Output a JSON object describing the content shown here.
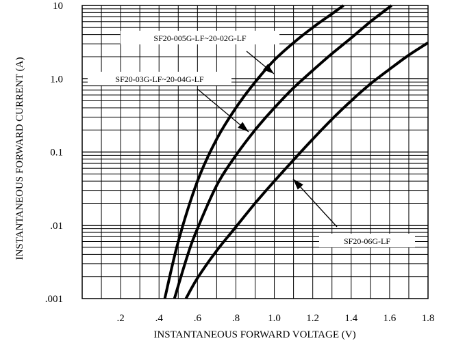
{
  "chart_data": {
    "type": "line",
    "title": "",
    "xlabel": "INSTANTANEOUS FORWARD VOLTAGE (V)",
    "ylabel": "INSTANTANEOUS FORWARD CURRENT (A)",
    "xlim": [
      0,
      1.8
    ],
    "ylim": [
      0.001,
      10
    ],
    "yscale": "log",
    "grid": true,
    "x_ticks": [
      {
        "value": 0.2,
        "label": ".2"
      },
      {
        "value": 0.4,
        "label": ".4"
      },
      {
        "value": 0.6,
        "label": ".6"
      },
      {
        "value": 0.8,
        "label": ".8"
      },
      {
        "value": 1.0,
        "label": "1.0"
      },
      {
        "value": 1.2,
        "label": "1.2"
      },
      {
        "value": 1.4,
        "label": "1.4"
      },
      {
        "value": 1.6,
        "label": "1.6"
      },
      {
        "value": 1.8,
        "label": "1.8"
      }
    ],
    "y_ticks": [
      {
        "value": 10,
        "label": "10"
      },
      {
        "value": 1,
        "label": "1.0"
      },
      {
        "value": 0.1,
        "label": "0.1"
      },
      {
        "value": 0.01,
        "label": ".01"
      },
      {
        "value": 0.001,
        "label": ".001"
      }
    ],
    "series": [
      {
        "name": "SF20-005G-LF~20-02G-LF",
        "x": [
          0.43,
          0.5,
          0.6,
          0.7,
          0.8,
          0.9,
          1.0,
          1.1,
          1.2,
          1.3,
          1.36
        ],
        "y": [
          0.001,
          0.006,
          0.04,
          0.15,
          0.4,
          0.9,
          1.8,
          3.1,
          5.0,
          7.7,
          10
        ]
      },
      {
        "name": "SF20-03G-LF~20-04G-LF",
        "x": [
          0.48,
          0.55,
          0.6,
          0.7,
          0.8,
          0.9,
          1.0,
          1.1,
          1.2,
          1.3,
          1.4,
          1.5,
          1.61
        ],
        "y": [
          0.001,
          0.004,
          0.009,
          0.035,
          0.09,
          0.2,
          0.4,
          0.75,
          1.3,
          2.2,
          3.6,
          6.0,
          10
        ]
      },
      {
        "name": "SF20-06G-LF",
        "x": [
          0.54,
          0.6,
          0.7,
          0.8,
          0.9,
          1.0,
          1.1,
          1.2,
          1.3,
          1.4,
          1.5,
          1.6,
          1.7,
          1.8
        ],
        "y": [
          0.001,
          0.0019,
          0.0045,
          0.0095,
          0.02,
          0.04,
          0.078,
          0.15,
          0.28,
          0.5,
          0.85,
          1.35,
          2.1,
          3.1
        ]
      }
    ],
    "annotations": [
      {
        "text": "SF20-005G-LF~20-02G-LF",
        "series": 0
      },
      {
        "text": "SF20-03G-LF~20-04G-LF",
        "series": 1
      },
      {
        "text": "SF20-06G-LF",
        "series": 2
      }
    ]
  }
}
